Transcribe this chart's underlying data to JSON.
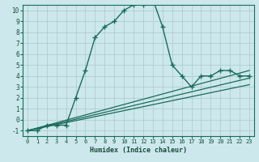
{
  "xlabel": "Humidex (Indice chaleur)",
  "bg_color": "#cce8ec",
  "grid_color": "#aac8cc",
  "line_color": "#1a6b5a",
  "xlim": [
    -0.5,
    23.5
  ],
  "ylim": [
    -1.5,
    10.5
  ],
  "xticks": [
    0,
    1,
    2,
    3,
    4,
    5,
    6,
    7,
    8,
    9,
    10,
    11,
    12,
    13,
    14,
    15,
    16,
    17,
    18,
    19,
    20,
    21,
    22,
    23
  ],
  "yticks": [
    -1,
    0,
    1,
    2,
    3,
    4,
    5,
    6,
    7,
    8,
    9,
    10
  ],
  "main_x": [
    0,
    1,
    2,
    3,
    4,
    5,
    6,
    7,
    8,
    9,
    10,
    11,
    12,
    13,
    14,
    15,
    16,
    17,
    18,
    19,
    20,
    21,
    22,
    23
  ],
  "main_y": [
    -1,
    -1,
    -0.5,
    -0.5,
    -0.5,
    2,
    4.5,
    7.5,
    8.5,
    9,
    10,
    10.5,
    10.5,
    11,
    8.5,
    5,
    4,
    3,
    4,
    4,
    4.5,
    4.5,
    4,
    4
  ],
  "line2_x": [
    0,
    23
  ],
  "line2_y": [
    -1,
    4.5
  ],
  "line3_x": [
    0,
    23
  ],
  "line3_y": [
    -1,
    3.8
  ],
  "line4_x": [
    0,
    23
  ],
  "line4_y": [
    -1,
    3.2
  ]
}
